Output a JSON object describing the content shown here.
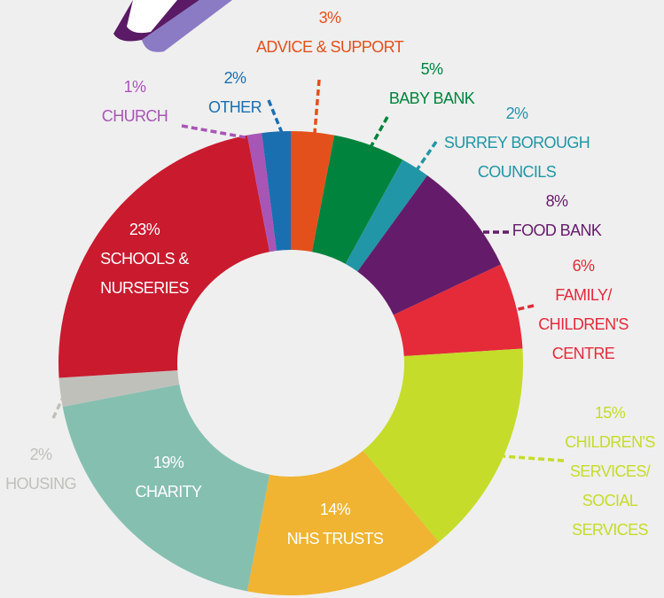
{
  "chart_data": {
    "type": "donut",
    "categories": [
      "ADVICE & SUPPORT",
      "BABY BANK",
      "SURREY BOROUGH\nCOUNCILS",
      "FOOD BANK",
      "FAMILY/\nCHILDREN'S\nCENTRE",
      "CHILDREN'S\nSERVICES/\nSOCIAL\nSERVICES",
      "NHS TRUSTS",
      "CHARITY",
      "HOUSING",
      "SCHOOLS &\nNURSERIES",
      "CHURCH",
      "OTHER"
    ],
    "values": [
      3,
      5,
      2,
      8,
      6,
      15,
      14,
      19,
      2,
      23,
      1,
      2
    ],
    "value_labels": [
      "3%",
      "5%",
      "2%",
      "8%",
      "6%",
      "15%",
      "14%",
      "19%",
      "2%",
      "23%",
      "1%",
      "2%"
    ],
    "colors": [
      "#e4501c",
      "#00843d",
      "#2196a6",
      "#641c6a",
      "#e52a3a",
      "#c5dc2a",
      "#f0b432",
      "#85bfb0",
      "#c0c0bb",
      "#c91a2e",
      "#a855b5",
      "#1a6fb0"
    ]
  }
}
